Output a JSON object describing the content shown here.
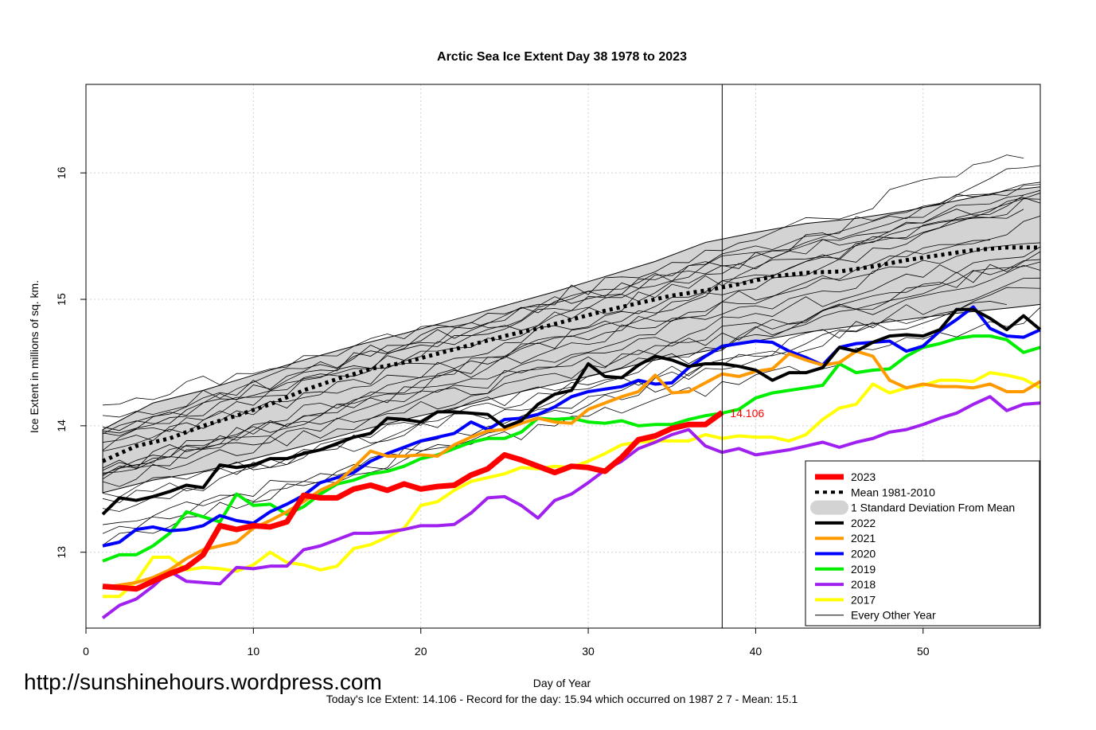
{
  "chart_data": {
    "type": "line",
    "title": "Arctic Sea Ice Extent Day 38 1978 to 2023",
    "xlabel": "Day of Year",
    "ylabel": "Ice Extent in millions of sq. km.",
    "xlim": [
      0,
      57
    ],
    "ylim": [
      12.4,
      16.7
    ],
    "x_ticks": [
      0,
      10,
      20,
      30,
      40,
      50
    ],
    "y_ticks": [
      13,
      14,
      15,
      16
    ],
    "grid": true,
    "legend_position": "bottom-right",
    "current_day": 38,
    "current_value_label": "14.106",
    "series": [
      {
        "name": "2023",
        "color": "#ff0000",
        "width": 7,
        "x": [
          1,
          2,
          3,
          4,
          5,
          6,
          7,
          8,
          9,
          10,
          11,
          12,
          13,
          14,
          15,
          16,
          17,
          18,
          19,
          20,
          21,
          22,
          23,
          24,
          25,
          26,
          27,
          28,
          29,
          30,
          31,
          32,
          33,
          34,
          35,
          36,
          37,
          38
        ],
        "values": [
          12.73,
          12.72,
          12.71,
          12.77,
          12.83,
          12.88,
          12.98,
          13.21,
          13.18,
          13.21,
          13.2,
          13.24,
          13.45,
          13.43,
          13.43,
          13.5,
          13.53,
          13.49,
          13.54,
          13.5,
          13.52,
          13.53,
          13.61,
          13.66,
          13.77,
          13.73,
          13.68,
          13.63,
          13.68,
          13.67,
          13.64,
          13.75,
          13.89,
          13.92,
          13.98,
          14.01,
          14.01,
          14.106
        ]
      },
      {
        "name": "Mean 1981-2010",
        "color": "#000000",
        "width": 5,
        "dash": "4 5",
        "x": [
          1,
          3,
          5,
          7,
          9,
          11,
          13,
          15,
          17,
          19,
          21,
          23,
          25,
          27,
          29,
          31,
          33,
          35,
          37,
          39,
          41,
          43,
          45,
          47,
          49,
          51,
          53,
          55,
          57
        ],
        "values": [
          13.72,
          13.84,
          13.9,
          14.0,
          14.08,
          14.17,
          14.28,
          14.37,
          14.45,
          14.5,
          14.57,
          14.64,
          14.71,
          14.77,
          14.84,
          14.91,
          14.97,
          15.03,
          15.07,
          15.12,
          15.18,
          15.21,
          15.22,
          15.26,
          15.31,
          15.35,
          15.39,
          15.41,
          15.41
        ]
      },
      {
        "name": "2022",
        "color": "#000000",
        "width": 4,
        "x": [
          1,
          2,
          3,
          4,
          5,
          6,
          7,
          8,
          9,
          10,
          11,
          12,
          13,
          14,
          15,
          16,
          17,
          18,
          19,
          20,
          21,
          22,
          23,
          24,
          25,
          26,
          27,
          28,
          29,
          30,
          31,
          32,
          33,
          34,
          35,
          36,
          37,
          38,
          39,
          40,
          41,
          42,
          43,
          44,
          45,
          46,
          47,
          48,
          49,
          50,
          51,
          52,
          53,
          54,
          55,
          56,
          57
        ],
        "values": [
          13.3,
          13.43,
          13.41,
          13.44,
          13.48,
          13.53,
          13.51,
          13.69,
          13.67,
          13.69,
          13.74,
          13.74,
          13.78,
          13.81,
          13.86,
          13.91,
          13.94,
          14.06,
          14.05,
          14.03,
          14.11,
          14.11,
          14.1,
          14.09,
          13.99,
          14.04,
          14.17,
          14.25,
          14.28,
          14.49,
          14.39,
          14.38,
          14.48,
          14.55,
          14.52,
          14.47,
          14.49,
          14.49,
          14.47,
          14.44,
          14.36,
          14.42,
          14.42,
          14.46,
          14.62,
          14.59,
          14.66,
          14.71,
          14.72,
          14.71,
          14.76,
          14.92,
          14.92,
          14.85,
          14.76,
          14.87,
          14.76
        ]
      },
      {
        "name": "2021",
        "color": "#ff9900",
        "width": 4,
        "x": [
          1,
          2,
          3,
          4,
          5,
          6,
          7,
          8,
          9,
          10,
          11,
          12,
          13,
          14,
          15,
          16,
          17,
          18,
          19,
          20,
          21,
          22,
          23,
          24,
          25,
          26,
          27,
          28,
          29,
          30,
          31,
          32,
          33,
          34,
          35,
          36,
          37,
          38,
          39,
          40,
          41,
          42,
          43,
          44,
          45,
          46,
          47,
          48,
          49,
          50,
          51,
          52,
          53,
          54,
          55,
          56,
          57
        ],
        "values": [
          12.72,
          12.74,
          12.76,
          12.8,
          12.86,
          12.95,
          13.02,
          13.05,
          13.08,
          13.19,
          13.25,
          13.32,
          13.4,
          13.49,
          13.55,
          13.67,
          13.8,
          13.76,
          13.76,
          13.77,
          13.76,
          13.85,
          13.91,
          13.96,
          13.97,
          14.02,
          14.06,
          14.03,
          14.02,
          14.13,
          14.18,
          14.23,
          14.27,
          14.4,
          14.26,
          14.27,
          14.34,
          14.41,
          14.39,
          14.43,
          14.45,
          14.57,
          14.52,
          14.48,
          14.5,
          14.59,
          14.55,
          14.36,
          14.3,
          14.33,
          14.31,
          14.31,
          14.3,
          14.33,
          14.27,
          14.27,
          14.35
        ]
      },
      {
        "name": "2020",
        "color": "#0000ff",
        "width": 4,
        "x": [
          1,
          2,
          3,
          4,
          5,
          6,
          7,
          8,
          9,
          10,
          11,
          12,
          13,
          14,
          15,
          16,
          17,
          18,
          19,
          20,
          21,
          22,
          23,
          24,
          25,
          26,
          27,
          28,
          29,
          30,
          31,
          32,
          33,
          34,
          35,
          36,
          37,
          38,
          39,
          40,
          41,
          42,
          43,
          44,
          45,
          46,
          47,
          48,
          49,
          50,
          51,
          52,
          53,
          54,
          55,
          56,
          57
        ],
        "values": [
          13.05,
          13.08,
          13.18,
          13.2,
          13.17,
          13.18,
          13.21,
          13.29,
          13.25,
          13.23,
          13.32,
          13.38,
          13.45,
          13.55,
          13.59,
          13.63,
          13.72,
          13.78,
          13.83,
          13.88,
          13.91,
          13.94,
          14.03,
          13.97,
          14.05,
          14.06,
          14.09,
          14.15,
          14.23,
          14.27,
          14.29,
          14.31,
          14.36,
          14.33,
          14.34,
          14.46,
          14.55,
          14.63,
          14.65,
          14.67,
          14.66,
          14.59,
          14.54,
          14.48,
          14.62,
          14.65,
          14.66,
          14.67,
          14.59,
          14.63,
          14.75,
          14.84,
          14.94,
          14.77,
          14.71,
          14.7,
          14.76
        ]
      },
      {
        "name": "2019",
        "color": "#00ee00",
        "width": 4,
        "x": [
          1,
          2,
          3,
          4,
          5,
          6,
          7,
          8,
          9,
          10,
          11,
          12,
          13,
          14,
          15,
          16,
          17,
          18,
          19,
          20,
          21,
          22,
          23,
          24,
          25,
          26,
          27,
          28,
          29,
          30,
          31,
          32,
          33,
          34,
          35,
          36,
          37,
          38,
          39,
          40,
          41,
          42,
          43,
          44,
          45,
          46,
          47,
          48,
          49,
          50,
          51,
          52,
          53,
          54,
          55,
          56,
          57
        ],
        "values": [
          12.93,
          12.98,
          12.98,
          13.05,
          13.15,
          13.32,
          13.28,
          13.24,
          13.46,
          13.37,
          13.38,
          13.3,
          13.36,
          13.46,
          13.54,
          13.57,
          13.62,
          13.64,
          13.68,
          13.74,
          13.77,
          13.82,
          13.87,
          13.9,
          13.9,
          13.95,
          14.06,
          14.05,
          14.06,
          14.03,
          14.02,
          14.04,
          14.0,
          14.01,
          14.01,
          14.05,
          14.08,
          14.1,
          14.13,
          14.22,
          14.26,
          14.28,
          14.3,
          14.32,
          14.49,
          14.42,
          14.44,
          14.45,
          14.55,
          14.62,
          14.65,
          14.69,
          14.71,
          14.71,
          14.68,
          14.58,
          14.62
        ]
      },
      {
        "name": "2018",
        "color": "#a020f0",
        "width": 4,
        "x": [
          1,
          2,
          3,
          4,
          5,
          6,
          7,
          8,
          9,
          10,
          11,
          12,
          13,
          14,
          15,
          16,
          17,
          18,
          19,
          20,
          21,
          22,
          23,
          24,
          25,
          26,
          27,
          28,
          29,
          30,
          31,
          32,
          33,
          34,
          35,
          36,
          37,
          38,
          39,
          40,
          41,
          42,
          43,
          44,
          45,
          46,
          47,
          48,
          49,
          50,
          51,
          52,
          53,
          54,
          55,
          56,
          57
        ],
        "values": [
          12.48,
          12.58,
          12.63,
          12.73,
          12.85,
          12.77,
          12.76,
          12.75,
          12.88,
          12.87,
          12.89,
          12.89,
          13.02,
          13.05,
          13.1,
          13.15,
          13.15,
          13.16,
          13.18,
          13.21,
          13.21,
          13.22,
          13.31,
          13.43,
          13.44,
          13.37,
          13.27,
          13.41,
          13.46,
          13.55,
          13.65,
          13.72,
          13.82,
          13.87,
          13.93,
          13.97,
          13.84,
          13.79,
          13.82,
          13.77,
          13.79,
          13.81,
          13.84,
          13.87,
          13.83,
          13.87,
          13.9,
          13.95,
          13.97,
          14.01,
          14.06,
          14.1,
          14.17,
          14.23,
          14.12,
          14.17,
          14.18
        ]
      },
      {
        "name": "2017",
        "color": "#ffff00",
        "width": 4,
        "x": [
          1,
          2,
          3,
          4,
          5,
          6,
          7,
          8,
          9,
          10,
          11,
          12,
          13,
          14,
          15,
          16,
          17,
          18,
          19,
          20,
          21,
          22,
          23,
          24,
          25,
          26,
          27,
          28,
          29,
          30,
          31,
          32,
          33,
          34,
          35,
          36,
          37,
          38,
          39,
          40,
          41,
          42,
          43,
          44,
          45,
          46,
          47,
          48,
          49,
          50,
          51,
          52,
          53,
          54,
          55,
          56,
          57
        ],
        "values": [
          12.65,
          12.65,
          12.77,
          12.96,
          12.96,
          12.86,
          12.88,
          12.87,
          12.85,
          12.9,
          13.0,
          12.92,
          12.9,
          12.86,
          12.89,
          13.03,
          13.06,
          13.12,
          13.19,
          13.37,
          13.4,
          13.49,
          13.56,
          13.59,
          13.62,
          13.67,
          13.66,
          13.68,
          13.67,
          13.72,
          13.78,
          13.85,
          13.87,
          13.88,
          13.88,
          13.88,
          13.93,
          13.9,
          13.92,
          13.91,
          13.91,
          13.88,
          13.93,
          14.05,
          14.14,
          14.17,
          14.33,
          14.26,
          14.3,
          14.32,
          14.36,
          14.36,
          14.35,
          14.42,
          14.4,
          14.37,
          14.3
        ]
      }
    ],
    "std_band": {
      "x": [
        1,
        4,
        7,
        10,
        13,
        16,
        19,
        22,
        25,
        28,
        31,
        34,
        37,
        40,
        43,
        46,
        49,
        52,
        55,
        57
      ],
      "lower": [
        13.47,
        13.57,
        13.64,
        13.74,
        13.84,
        13.95,
        14.05,
        14.14,
        14.24,
        14.33,
        14.42,
        14.52,
        14.59,
        14.67,
        14.74,
        14.79,
        14.84,
        14.89,
        14.93,
        14.96
      ],
      "upper": [
        13.97,
        14.18,
        14.28,
        14.4,
        14.52,
        14.63,
        14.73,
        14.84,
        14.95,
        15.06,
        15.18,
        15.3,
        15.45,
        15.53,
        15.6,
        15.64,
        15.7,
        15.78,
        15.86,
        15.89
      ]
    },
    "legend": [
      {
        "label": "2023",
        "style": "red-thick"
      },
      {
        "label": "Mean 1981-2010",
        "style": "black-dashed"
      },
      {
        "label": "1 Standard Deviation From Mean",
        "style": "grey-band"
      },
      {
        "label": "2022",
        "style": "black"
      },
      {
        "label": "2021",
        "style": "orange"
      },
      {
        "label": "2020",
        "style": "blue"
      },
      {
        "label": "2019",
        "style": "green"
      },
      {
        "label": "2018",
        "style": "purple"
      },
      {
        "label": "2017",
        "style": "yellow"
      },
      {
        "label": "Every Other Year",
        "style": "black-thin"
      }
    ],
    "footer": "Today's Ice Extent: 14.106  - Record for the day: 15.94 which occurred on 1987 2 7  - Mean: 15.1"
  },
  "watermark": "http://sunshinehours.wordpress.com",
  "colors": {
    "band_fill": "#d3d3d3",
    "grid": "#d0d0d0",
    "label_2023": "#ff0000"
  }
}
